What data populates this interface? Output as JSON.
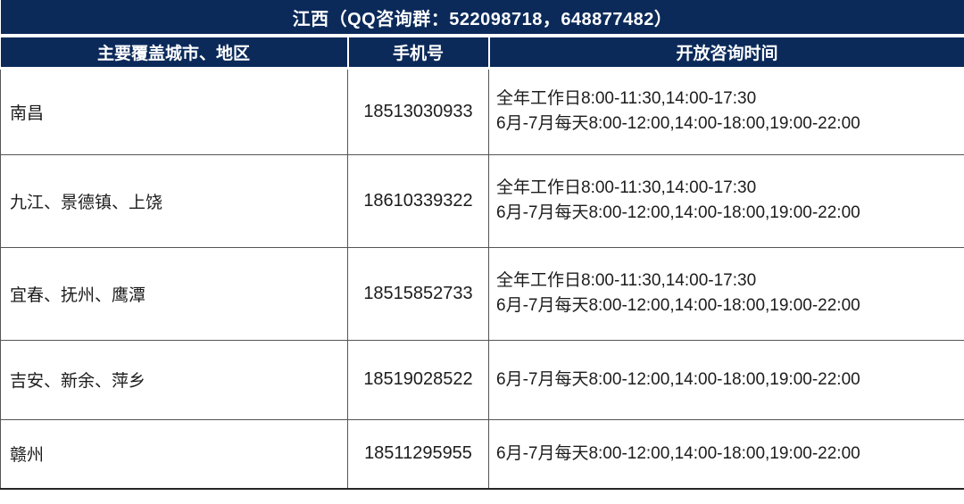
{
  "colors": {
    "header_bg": "#0b2a5a",
    "header_text": "#ffffff",
    "body_text": "#1c1c1c",
    "border": "#555555"
  },
  "table": {
    "title": "江西（QQ咨询群：522098718，648877482）",
    "columns": [
      "主要覆盖城市、地区",
      "手机号",
      "开放咨询时间"
    ],
    "rows": [
      {
        "region": "南昌",
        "phone": "18513030933",
        "hours": [
          "全年工作日8:00-11:30,14:00-17:30",
          "6月-7月每天8:00-12:00,14:00-18:00,19:00-22:00"
        ]
      },
      {
        "region": "九江、景德镇、上饶",
        "phone": "18610339322",
        "hours": [
          "全年工作日8:00-11:30,14:00-17:30",
          "6月-7月每天8:00-12:00,14:00-18:00,19:00-22:00"
        ]
      },
      {
        "region": "宜春、抚州、鹰潭",
        "phone": "18515852733",
        "hours": [
          "全年工作日8:00-11:30,14:00-17:30",
          "6月-7月每天8:00-12:00,14:00-18:00,19:00-22:00"
        ]
      },
      {
        "region": "吉安、新余、萍乡",
        "phone": "18519028522",
        "hours": [
          "6月-7月每天8:00-12:00,14:00-18:00,19:00-22:00"
        ]
      },
      {
        "region": "赣州",
        "phone": "18511295955",
        "hours": [
          "6月-7月每天8:00-12:00,14:00-18:00,19:00-22:00"
        ]
      }
    ]
  }
}
